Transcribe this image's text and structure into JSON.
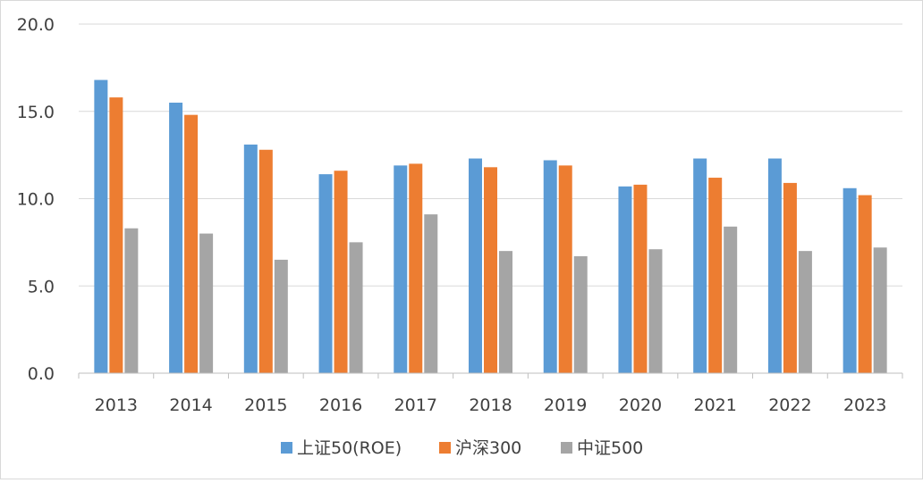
{
  "chart_data": {
    "type": "bar",
    "title": "",
    "xlabel": "",
    "ylabel": "",
    "ylim": [
      0,
      20
    ],
    "yticks": [
      "0.0",
      "5.0",
      "10.0",
      "15.0",
      "20.0"
    ],
    "categories": [
      "2013",
      "2014",
      "2015",
      "2016",
      "2017",
      "2018",
      "2019",
      "2020",
      "2021",
      "2022",
      "2023"
    ],
    "series": [
      {
        "name": "上证50(ROE)",
        "color": "#5b9bd5",
        "values": [
          16.8,
          15.5,
          13.1,
          11.4,
          11.9,
          12.3,
          12.2,
          10.7,
          12.3,
          12.3,
          10.6
        ]
      },
      {
        "name": "沪深300",
        "color": "#ed7d31",
        "values": [
          15.8,
          14.8,
          12.8,
          11.6,
          12.0,
          11.8,
          11.9,
          10.8,
          11.2,
          10.9,
          10.2
        ]
      },
      {
        "name": "中证500",
        "color": "#a5a5a5",
        "values": [
          8.3,
          8.0,
          6.5,
          7.5,
          9.1,
          7.0,
          6.7,
          7.1,
          8.4,
          7.0,
          7.2
        ]
      }
    ],
    "grid": true,
    "legend_position": "bottom"
  }
}
